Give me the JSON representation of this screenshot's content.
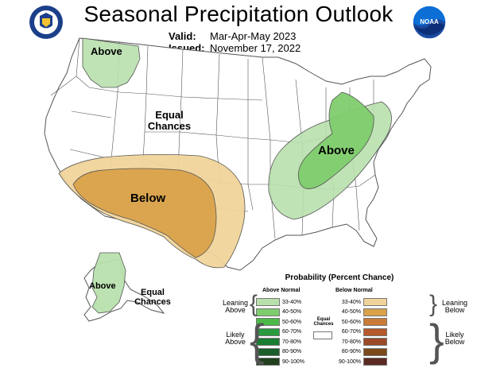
{
  "title": "Seasonal Precipitation Outlook",
  "valid": {
    "label": "Valid:",
    "value": "Mar-Apr-May 2023"
  },
  "issued": {
    "label": "Issued:",
    "value": "November 17, 2022"
  },
  "logos": {
    "left": "noaa-dept-commerce-seal-icon",
    "right": "noaa-logo-icon"
  },
  "colors": {
    "above_33_40": "#b8e0ad",
    "above_40_50": "#7fcc6e",
    "below_33_40": "#f0d49a",
    "below_40_50": "#d9a24b",
    "outline": "#555555"
  },
  "map_labels": {
    "above_northwest": "Above",
    "equal_chances_west": "Equal Chances",
    "above_east": "Above",
    "below_southwest": "Below",
    "above_alaska": "Above",
    "equal_chances_alaska": "Equal Chances"
  },
  "legend": {
    "title": "Probability (Percent Chance)",
    "above_header": "Above Normal",
    "below_header": "Below Normal",
    "above_rows": [
      {
        "range": "33-40%",
        "color": "#b8e0ad"
      },
      {
        "range": "40-50%",
        "color": "#7fcc6e"
      },
      {
        "range": "50-60%",
        "color": "#4cb848"
      },
      {
        "range": "60-70%",
        "color": "#2a9a3e"
      },
      {
        "range": "70-80%",
        "color": "#1a7d32"
      },
      {
        "range": "80-90%",
        "color": "#1b5e2a"
      },
      {
        "range": "90-100%",
        "color": "#21401e"
      }
    ],
    "below_rows": [
      {
        "range": "33-40%",
        "color": "#f0d49a"
      },
      {
        "range": "40-50%",
        "color": "#d9a24b"
      },
      {
        "range": "50-60%",
        "color": "#c97a36"
      },
      {
        "range": "60-70%",
        "color": "#b5582b"
      },
      {
        "range": "70-80%",
        "color": "#9b4a2a"
      },
      {
        "range": "80-90%",
        "color": "#7a4a1c"
      },
      {
        "range": "90-100%",
        "color": "#5a2a22"
      }
    ],
    "equal_chances": "Equal Chances",
    "leaning_above": "Leaning Above",
    "likely_above": "Likely Above",
    "leaning_below": "Leaning Below",
    "likely_below": "Likely Below"
  }
}
